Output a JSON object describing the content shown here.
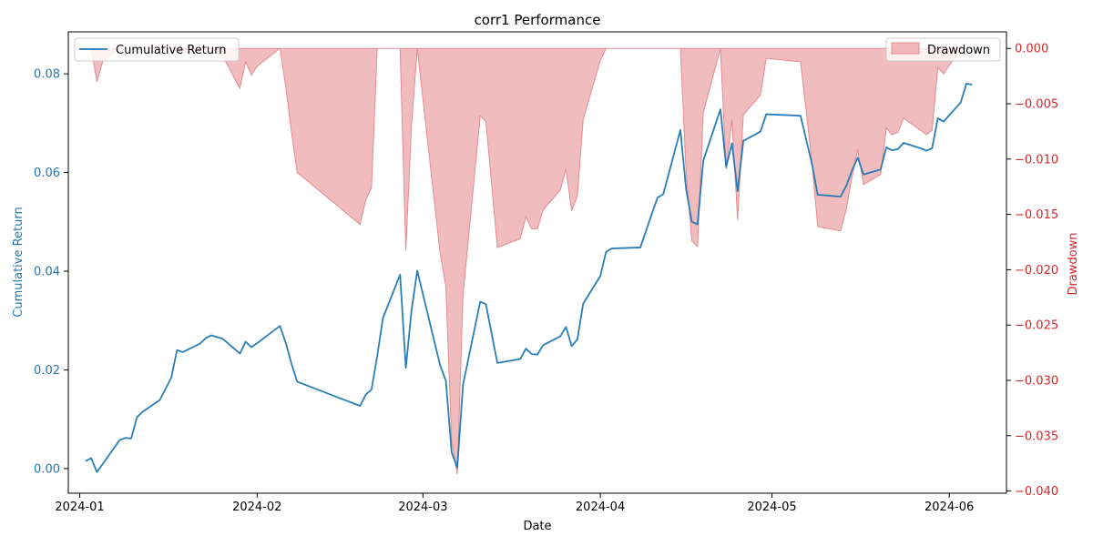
{
  "colors": {
    "return_line": "#1f77b4",
    "drawdown_fill": "#f0b8ba",
    "drawdown_edge": "#e58b90",
    "left_axis": "#1f77b4",
    "right_axis": "#d62728"
  },
  "chart_data": {
    "type": "line",
    "title": "corr1 Performance",
    "xlabel": "Date",
    "ylabel": "Cumulative Return",
    "y2label": "Drawdown",
    "xlim": [
      "2023-12-30",
      "2024-06-11"
    ],
    "ylim": [
      -0.005,
      0.0885
    ],
    "y2lim": [
      -0.0402,
      0.0015
    ],
    "x_ticks": [
      "2024-01",
      "2024-02",
      "2024-03",
      "2024-04",
      "2024-05",
      "2024-06"
    ],
    "y_ticks": [
      "0.00",
      "0.02",
      "0.04",
      "0.06",
      "0.08"
    ],
    "y2_ticks": [
      "0.000",
      "−0.005",
      "−0.010",
      "−0.015",
      "−0.020",
      "−0.025",
      "−0.030",
      "−0.035",
      "−0.040"
    ],
    "legend": {
      "line_label": "Cumulative Return",
      "line_position": "top-left",
      "fill_label": "Drawdown",
      "fill_position": "top-right"
    },
    "grid": false,
    "series": [
      {
        "name": "Cumulative Return",
        "axis": "left",
        "dates": [
          "2024-01-02",
          "2024-01-03",
          "2024-01-04",
          "2024-01-05",
          "2024-01-08",
          "2024-01-09",
          "2024-01-10",
          "2024-01-11",
          "2024-01-12",
          "2024-01-15",
          "2024-01-17",
          "2024-01-18",
          "2024-01-19",
          "2024-01-22",
          "2024-01-23",
          "2024-01-24",
          "2024-01-26",
          "2024-01-29",
          "2024-01-30",
          "2024-01-31",
          "2024-02-01",
          "2024-02-05",
          "2024-02-06",
          "2024-02-07",
          "2024-02-08",
          "2024-02-19",
          "2024-02-20",
          "2024-02-21",
          "2024-02-22",
          "2024-02-23",
          "2024-02-26",
          "2024-02-27",
          "2024-02-28",
          "2024-02-29",
          "2024-03-04",
          "2024-03-05",
          "2024-03-06",
          "2024-03-07",
          "2024-03-08",
          "2024-03-11",
          "2024-03-12",
          "2024-03-14",
          "2024-03-18",
          "2024-03-19",
          "2024-03-20",
          "2024-03-21",
          "2024-03-22",
          "2024-03-25",
          "2024-03-26",
          "2024-03-27",
          "2024-03-28",
          "2024-03-29",
          "2024-04-01",
          "2024-04-02",
          "2024-04-03",
          "2024-04-08",
          "2024-04-10",
          "2024-04-11",
          "2024-04-12",
          "2024-04-15",
          "2024-04-16",
          "2024-04-17",
          "2024-04-18",
          "2024-04-19",
          "2024-04-22",
          "2024-04-23",
          "2024-04-24",
          "2024-04-25",
          "2024-04-26",
          "2024-04-29",
          "2024-04-30",
          "2024-05-06",
          "2024-05-08",
          "2024-05-09",
          "2024-05-13",
          "2024-05-14",
          "2024-05-15",
          "2024-05-16",
          "2024-05-17",
          "2024-05-20",
          "2024-05-21",
          "2024-05-22",
          "2024-05-23",
          "2024-05-24",
          "2024-05-27",
          "2024-05-28",
          "2024-05-29",
          "2024-05-30",
          "2024-05-31",
          "2024-06-03",
          "2024-06-04",
          "2024-06-05"
        ],
        "values": [
          0.0015,
          0.0021,
          -0.0007,
          0.0009,
          0.0058,
          0.0062,
          0.0061,
          0.0104,
          0.0115,
          0.0139,
          0.0184,
          0.024,
          0.0236,
          0.0253,
          0.0264,
          0.027,
          0.0263,
          0.0233,
          0.0257,
          0.0246,
          0.0254,
          0.0289,
          0.0255,
          0.0213,
          0.0176,
          0.0127,
          0.015,
          0.016,
          0.0228,
          0.0305,
          0.0393,
          0.0204,
          0.0321,
          0.0401,
          0.0209,
          0.0178,
          0.0033,
          0.0002,
          0.017,
          0.0338,
          0.0333,
          0.0214,
          0.0222,
          0.0243,
          0.0232,
          0.0231,
          0.025,
          0.0268,
          0.0287,
          0.0248,
          0.0262,
          0.0334,
          0.039,
          0.0439,
          0.0446,
          0.0448,
          0.0516,
          0.0549,
          0.0556,
          0.0686,
          0.0566,
          0.05,
          0.0495,
          0.0624,
          0.0728,
          0.0611,
          0.0659,
          0.0562,
          0.0664,
          0.0683,
          0.0718,
          0.0715,
          0.0617,
          0.0555,
          0.0551,
          0.0573,
          0.0604,
          0.063,
          0.0596,
          0.0606,
          0.0651,
          0.0645,
          0.0647,
          0.066,
          0.0649,
          0.0644,
          0.0649,
          0.071,
          0.0703,
          0.0742,
          0.078,
          0.0778
        ]
      },
      {
        "name": "Drawdown",
        "axis": "right",
        "dates": [
          "2024-01-02",
          "2024-01-03",
          "2024-01-04",
          "2024-01-05",
          "2024-01-08",
          "2024-01-09",
          "2024-01-10",
          "2024-01-11",
          "2024-01-12",
          "2024-01-15",
          "2024-01-17",
          "2024-01-18",
          "2024-01-19",
          "2024-01-22",
          "2024-01-23",
          "2024-01-24",
          "2024-01-26",
          "2024-01-29",
          "2024-01-30",
          "2024-01-31",
          "2024-02-01",
          "2024-02-05",
          "2024-02-06",
          "2024-02-07",
          "2024-02-08",
          "2024-02-19",
          "2024-02-20",
          "2024-02-21",
          "2024-02-22",
          "2024-02-23",
          "2024-02-26",
          "2024-02-27",
          "2024-02-28",
          "2024-02-29",
          "2024-03-04",
          "2024-03-05",
          "2024-03-06",
          "2024-03-07",
          "2024-03-08",
          "2024-03-11",
          "2024-03-12",
          "2024-03-14",
          "2024-03-18",
          "2024-03-19",
          "2024-03-20",
          "2024-03-21",
          "2024-03-22",
          "2024-03-25",
          "2024-03-26",
          "2024-03-27",
          "2024-03-28",
          "2024-03-29",
          "2024-04-01",
          "2024-04-02",
          "2024-04-03",
          "2024-04-08",
          "2024-04-10",
          "2024-04-11",
          "2024-04-12",
          "2024-04-15",
          "2024-04-16",
          "2024-04-17",
          "2024-04-18",
          "2024-04-19",
          "2024-04-22",
          "2024-04-23",
          "2024-04-24",
          "2024-04-25",
          "2024-04-26",
          "2024-04-29",
          "2024-04-30",
          "2024-05-06",
          "2024-05-08",
          "2024-05-09",
          "2024-05-13",
          "2024-05-14",
          "2024-05-15",
          "2024-05-16",
          "2024-05-17",
          "2024-05-20",
          "2024-05-21",
          "2024-05-22",
          "2024-05-23",
          "2024-05-24",
          "2024-05-27",
          "2024-05-28",
          "2024-05-29",
          "2024-05-30",
          "2024-05-31",
          "2024-06-03",
          "2024-06-04",
          "2024-06-05"
        ],
        "values": [
          0.0,
          0.0,
          -0.003,
          -0.0012,
          0.0,
          0.0,
          -0.0001,
          0.0,
          0.0,
          0.0,
          0.0,
          0.0,
          -0.0004,
          -0.0002,
          0.0,
          0.0,
          -0.0007,
          -0.0036,
          -0.0012,
          -0.0024,
          -0.0016,
          0.0,
          -0.0034,
          -0.0075,
          -0.0112,
          -0.0159,
          -0.0137,
          -0.0126,
          0.0,
          0.0,
          0.0,
          -0.0182,
          -0.0069,
          0.0,
          -0.0185,
          -0.0215,
          -0.0354,
          -0.0385,
          -0.0223,
          -0.0061,
          -0.0066,
          -0.018,
          -0.0172,
          -0.0152,
          -0.0163,
          -0.0163,
          -0.0146,
          -0.0128,
          -0.0109,
          -0.0147,
          -0.0133,
          -0.0064,
          -0.0011,
          0.0,
          0.0,
          0.0,
          0.0,
          0.0,
          0.0,
          0.0,
          -0.0112,
          -0.0174,
          -0.0179,
          -0.0058,
          0.0,
          -0.0109,
          -0.0064,
          -0.0155,
          -0.006,
          -0.0042,
          -0.0009,
          -0.0012,
          -0.0103,
          -0.0161,
          -0.0165,
          -0.0145,
          -0.0116,
          -0.0091,
          -0.0123,
          -0.0114,
          -0.0072,
          -0.0078,
          -0.0076,
          -0.0063,
          -0.0074,
          -0.0078,
          -0.0074,
          -0.0017,
          -0.0023,
          0.0,
          0.0,
          0.0
        ]
      }
    ]
  }
}
